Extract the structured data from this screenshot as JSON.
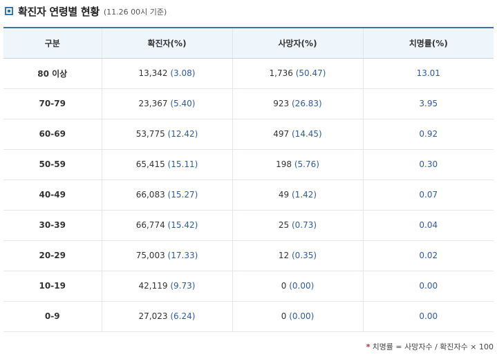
{
  "header": {
    "icon": "square-bullet-icon",
    "title": "확진자 연령별 현황",
    "subtitle": "(11.26 00시 기준)"
  },
  "table": {
    "columns": [
      "구분",
      "확진자(%)",
      "사망자(%)",
      "치명률(%)"
    ],
    "rows": [
      {
        "age": "80 이상",
        "cases": "13,342",
        "cases_pct": "(3.08)",
        "deaths": "1,736",
        "deaths_pct": "(50.47)",
        "rate": "13.01"
      },
      {
        "age": "70-79",
        "cases": "23,367",
        "cases_pct": "(5.40)",
        "deaths": "923",
        "deaths_pct": "(26.83)",
        "rate": "3.95"
      },
      {
        "age": "60-69",
        "cases": "53,775",
        "cases_pct": "(12.42)",
        "deaths": "497",
        "deaths_pct": "(14.45)",
        "rate": "0.92"
      },
      {
        "age": "50-59",
        "cases": "65,415",
        "cases_pct": "(15.11)",
        "deaths": "198",
        "deaths_pct": "(5.76)",
        "rate": "0.30"
      },
      {
        "age": "40-49",
        "cases": "66,083",
        "cases_pct": "(15.27)",
        "deaths": "49",
        "deaths_pct": "(1.42)",
        "rate": "0.07"
      },
      {
        "age": "30-39",
        "cases": "66,774",
        "cases_pct": "(15.42)",
        "deaths": "25",
        "deaths_pct": "(0.73)",
        "rate": "0.04"
      },
      {
        "age": "20-29",
        "cases": "75,003",
        "cases_pct": "(17.33)",
        "deaths": "12",
        "deaths_pct": "(0.35)",
        "rate": "0.02"
      },
      {
        "age": "10-19",
        "cases": "42,119",
        "cases_pct": "(9.73)",
        "deaths": "0",
        "deaths_pct": "(0.00)",
        "rate": "0.00"
      },
      {
        "age": "0-9",
        "cases": "27,023",
        "cases_pct": "(6.24)",
        "deaths": "0",
        "deaths_pct": "(0.00)",
        "rate": "0.00"
      }
    ]
  },
  "footnote": {
    "marker": "*",
    "text": "치명률 = 사망자수 / 확진자수 × 100"
  },
  "colors": {
    "accent": "#2f78b8",
    "header_border": "#3b6fb0",
    "header_bg": "#eef5fb",
    "value_blue": "#2f5aa8",
    "footnote_marker": "#e02020"
  }
}
